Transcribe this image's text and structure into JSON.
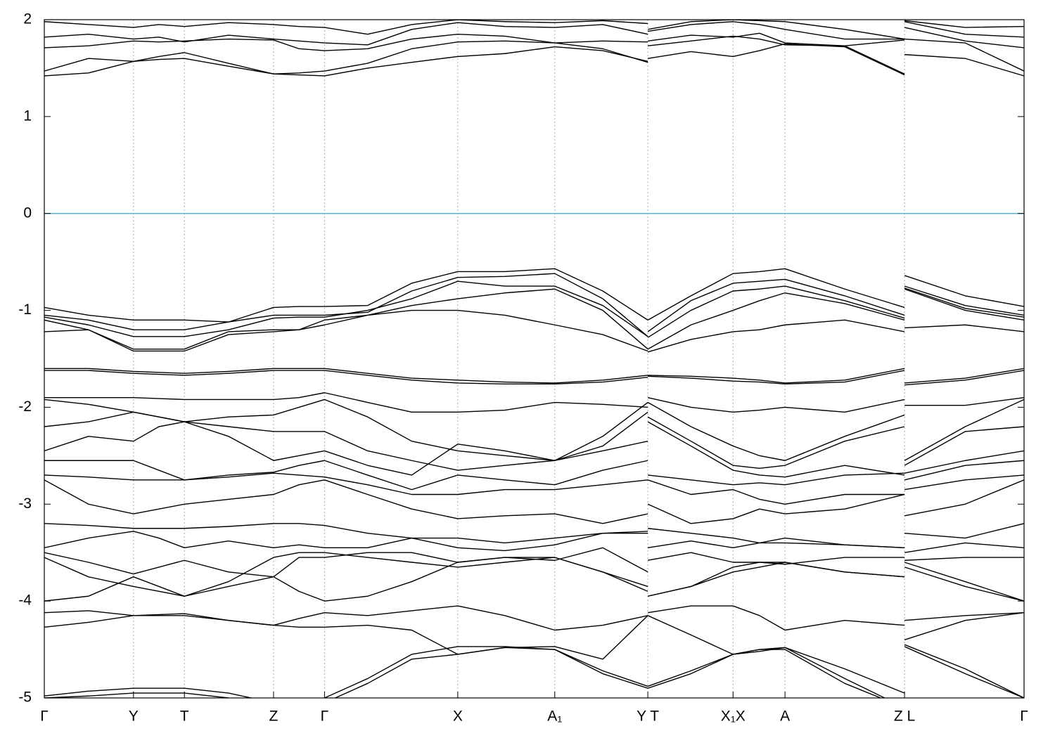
{
  "chart_data": {
    "type": "line",
    "x": [
      0,
      0.045,
      0.091,
      0.117,
      0.143,
      0.188,
      0.234,
      0.26,
      0.286,
      0.33,
      0.375,
      0.422,
      0.47,
      0.521,
      0.57,
      0.616,
      0.616,
      0.616,
      0.66,
      0.703,
      0.73,
      0.756,
      0.817,
      0.878,
      0.878,
      0.878,
      0.94,
      1
    ],
    "xlim": [
      0,
      1
    ],
    "xticks": [
      {
        "value": 0,
        "label": "Γ"
      },
      {
        "value": 0.091,
        "label": "Y"
      },
      {
        "value": 0.143,
        "label": "T"
      },
      {
        "value": 0.234,
        "label": "Z"
      },
      {
        "value": 0.286,
        "label": "Γ"
      },
      {
        "value": 0.422,
        "label": "X"
      },
      {
        "value": 0.521,
        "label": "A₁"
      },
      {
        "value": 0.616,
        "label": "Y T"
      },
      {
        "value": 0.703,
        "label": "X₁X"
      },
      {
        "value": 0.756,
        "label": "A"
      },
      {
        "value": 0.878,
        "label": "Z L"
      },
      {
        "value": 1,
        "label": "Γ"
      }
    ],
    "ylim": [
      -5,
      2
    ],
    "yticks": [
      2,
      1,
      0,
      -1,
      -2,
      -3,
      -4,
      -5
    ],
    "grid": true,
    "reference_line": {
      "value": 0,
      "color": "#5bb4cc"
    },
    "series": [
      {
        "color": "#000000",
        "values": [
          1.42,
          1.45,
          1.57,
          1.59,
          1.6,
          1.52,
          1.44,
          1.43,
          1.42,
          1.5,
          1.56,
          1.62,
          1.65,
          1.72,
          1.68,
          1.57,
          null,
          1.6,
          1.67,
          1.62,
          1.68,
          1.75,
          1.72,
          1.43,
          null,
          1.64,
          1.6,
          1.42
        ]
      },
      {
        "color": "#000000",
        "values": [
          1.47,
          1.6,
          1.57,
          1.62,
          1.66,
          1.55,
          1.44,
          1.45,
          1.47,
          1.55,
          1.7,
          1.77,
          1.78,
          1.76,
          1.7,
          1.56,
          null,
          1.73,
          1.78,
          1.83,
          1.8,
          1.74,
          1.73,
          1.44,
          null,
          1.8,
          1.76,
          1.47
        ]
      },
      {
        "color": "#000000",
        "values": [
          1.71,
          1.73,
          1.78,
          1.77,
          1.78,
          1.8,
          1.79,
          1.7,
          1.68,
          1.7,
          1.8,
          1.85,
          1.83,
          1.76,
          1.78,
          1.77,
          null,
          1.78,
          1.84,
          1.82,
          1.86,
          1.76,
          1.73,
          1.79,
          null,
          1.92,
          1.78,
          1.71
        ]
      },
      {
        "color": "#000000",
        "values": [
          1.82,
          1.85,
          1.8,
          1.82,
          1.77,
          1.84,
          1.8,
          1.78,
          1.76,
          1.74,
          1.9,
          1.97,
          1.93,
          1.92,
          1.95,
          1.85,
          null,
          1.88,
          1.95,
          1.98,
          1.95,
          1.9,
          1.8,
          1.8,
          null,
          1.98,
          1.85,
          1.82
        ]
      },
      {
        "color": "#000000",
        "values": [
          1.98,
          1.95,
          1.92,
          1.95,
          1.93,
          1.97,
          1.95,
          1.93,
          1.92,
          1.85,
          1.95,
          2.0,
          1.98,
          1.97,
          1.99,
          1.96,
          null,
          1.9,
          1.98,
          2.0,
          1.99,
          1.98,
          1.9,
          1.8,
          null,
          1.99,
          1.92,
          1.93
        ]
      },
      {
        "color": "#000000",
        "values": [
          -0.97,
          -1.05,
          -1.1,
          -1.1,
          -1.1,
          -1.12,
          -0.97,
          -0.96,
          -0.96,
          -0.95,
          -0.72,
          -0.6,
          -0.6,
          -0.57,
          -0.8,
          -1.1,
          null,
          -1.1,
          -0.85,
          -0.62,
          -0.6,
          -0.57,
          -0.78,
          -0.97,
          null,
          -0.64,
          -0.85,
          -0.96
        ]
      },
      {
        "color": "#000000",
        "values": [
          -1.05,
          -1.1,
          -1.2,
          -1.2,
          -1.2,
          -1.12,
          -1.05,
          -1.05,
          -1.05,
          -1.02,
          -0.8,
          -0.66,
          -0.65,
          -0.62,
          -0.88,
          -1.27,
          null,
          -1.22,
          -0.9,
          -0.72,
          -0.7,
          -0.68,
          -0.85,
          -1.05,
          null,
          -0.75,
          -0.95,
          -1.05
        ]
      },
      {
        "color": "#000000",
        "values": [
          -1.07,
          -1.15,
          -1.27,
          -1.27,
          -1.27,
          -1.2,
          -1.08,
          -1.07,
          -1.07,
          -1.0,
          -0.88,
          -0.7,
          -0.75,
          -0.75,
          -0.95,
          -1.27,
          null,
          -1.28,
          -1.0,
          -0.8,
          -0.78,
          -0.75,
          -0.9,
          -1.08,
          null,
          -0.77,
          -0.98,
          -1.07
        ]
      },
      {
        "color": "#000000",
        "values": [
          -1.1,
          -1.2,
          -1.4,
          -1.4,
          -1.4,
          -1.22,
          -1.2,
          -1.2,
          -1.1,
          -1.05,
          -0.95,
          -0.88,
          -0.82,
          -0.78,
          -1.0,
          -1.4,
          null,
          -1.4,
          -1.15,
          -1.0,
          -0.9,
          -0.82,
          -0.93,
          -1.1,
          null,
          -0.78,
          -1.0,
          -1.1
        ]
      },
      {
        "color": "#000000",
        "values": [
          -1.22,
          -1.2,
          -1.42,
          -1.42,
          -1.42,
          -1.25,
          -1.22,
          -1.2,
          -1.15,
          -1.05,
          -1.0,
          -1.0,
          -1.05,
          -1.15,
          -1.25,
          -1.42,
          null,
          -1.43,
          -1.3,
          -1.22,
          -1.2,
          -1.15,
          -1.1,
          -1.22,
          null,
          -1.18,
          -1.15,
          -1.22
        ]
      },
      {
        "color": "#000000",
        "values": [
          -1.6,
          -1.6,
          -1.63,
          -1.64,
          -1.65,
          -1.63,
          -1.6,
          -1.6,
          -1.6,
          -1.65,
          -1.7,
          -1.72,
          -1.74,
          -1.75,
          -1.72,
          -1.67,
          null,
          -1.67,
          -1.68,
          -1.7,
          -1.72,
          -1.75,
          -1.72,
          -1.6,
          null,
          -1.75,
          -1.7,
          -1.6
        ]
      },
      {
        "color": "#000000",
        "values": [
          -1.62,
          -1.62,
          -1.65,
          -1.66,
          -1.67,
          -1.65,
          -1.62,
          -1.62,
          -1.62,
          -1.67,
          -1.72,
          -1.75,
          -1.76,
          -1.76,
          -1.74,
          -1.69,
          null,
          -1.68,
          -1.7,
          -1.73,
          -1.74,
          -1.76,
          -1.74,
          -1.62,
          null,
          -1.77,
          -1.72,
          -1.62
        ]
      },
      {
        "color": "#000000",
        "values": [
          -1.9,
          -1.9,
          -1.9,
          -1.91,
          -1.92,
          -1.92,
          -1.92,
          -1.9,
          -1.85,
          -1.95,
          -2.05,
          -2.05,
          -2.03,
          -1.95,
          -1.97,
          -2.0,
          null,
          -1.9,
          -2.0,
          -2.05,
          -2.03,
          -2.0,
          -2.05,
          -1.92,
          null,
          -1.98,
          -1.98,
          -1.9
        ]
      },
      {
        "color": "#000000",
        "values": [
          -1.92,
          -1.97,
          -2.05,
          -2.1,
          -2.15,
          -2.1,
          -2.08,
          -2.0,
          -1.92,
          -2.1,
          -2.35,
          -2.45,
          -2.5,
          -2.55,
          -2.3,
          -1.95,
          null,
          -1.95,
          -2.2,
          -2.4,
          -2.5,
          -2.55,
          -2.3,
          -2.08,
          null,
          -2.55,
          -2.2,
          -1.92
        ]
      },
      {
        "color": "#000000",
        "values": [
          -2.2,
          -2.15,
          -2.05,
          -2.1,
          -2.15,
          -2.2,
          -2.25,
          -2.25,
          -2.25,
          -2.45,
          -2.55,
          -2.65,
          -2.6,
          -2.55,
          -2.4,
          -2.05,
          null,
          -2.1,
          -2.35,
          -2.6,
          -2.63,
          -2.6,
          -2.35,
          -2.2,
          null,
          -2.6,
          -2.25,
          -2.2
        ]
      },
      {
        "color": "#000000",
        "values": [
          -2.45,
          -2.3,
          -2.35,
          -2.2,
          -2.15,
          -2.3,
          -2.55,
          -2.5,
          -2.45,
          -2.6,
          -2.7,
          -2.38,
          -2.45,
          -2.55,
          -2.45,
          -2.35,
          null,
          -2.15,
          -2.4,
          -2.65,
          -2.7,
          -2.72,
          -2.6,
          -2.7,
          null,
          -2.68,
          -2.55,
          -2.45
        ]
      },
      {
        "color": "#000000",
        "values": [
          -2.55,
          -2.55,
          -2.55,
          -2.65,
          -2.75,
          -2.7,
          -2.67,
          -2.6,
          -2.55,
          -2.7,
          -2.85,
          -2.7,
          -2.75,
          -2.8,
          -2.65,
          -2.55,
          null,
          -2.7,
          -2.75,
          -2.8,
          -2.78,
          -2.8,
          -2.7,
          -2.68,
          null,
          -2.75,
          -2.6,
          -2.55
        ]
      },
      {
        "color": "#000000",
        "values": [
          -2.7,
          -2.72,
          -2.75,
          -2.75,
          -2.75,
          -2.72,
          -2.68,
          -2.7,
          -2.72,
          -2.8,
          -2.9,
          -2.9,
          -2.85,
          -2.85,
          -2.8,
          -2.75,
          null,
          -2.75,
          -2.9,
          -2.85,
          -2.95,
          -3.0,
          -2.9,
          -2.9,
          null,
          -2.85,
          -2.75,
          -2.7
        ]
      },
      {
        "color": "#000000",
        "values": [
          -2.75,
          -3.0,
          -3.1,
          -3.05,
          -3.0,
          -2.95,
          -2.9,
          -2.8,
          -2.75,
          -2.9,
          -3.05,
          -3.15,
          -3.12,
          -3.1,
          -3.2,
          -3.1,
          null,
          -3.0,
          -3.2,
          -3.15,
          -3.05,
          -3.1,
          -3.05,
          -2.9,
          null,
          -3.12,
          -3.0,
          -2.75
        ]
      },
      {
        "color": "#000000",
        "values": [
          -3.2,
          -3.22,
          -3.25,
          -3.25,
          -3.25,
          -3.23,
          -3.2,
          -3.2,
          -3.22,
          -3.3,
          -3.35,
          -3.35,
          -3.4,
          -3.35,
          -3.3,
          -3.28,
          null,
          -3.25,
          -3.3,
          -3.35,
          -3.4,
          -3.4,
          -3.42,
          -3.45,
          null,
          -3.3,
          -3.35,
          -3.2
        ]
      },
      {
        "color": "#000000",
        "values": [
          -3.45,
          -3.35,
          -3.28,
          -3.35,
          -3.45,
          -3.38,
          -3.45,
          -3.42,
          -3.45,
          -3.45,
          -3.35,
          -3.45,
          -3.48,
          -3.42,
          -3.3,
          -3.3,
          null,
          -3.45,
          -3.38,
          -3.45,
          -3.4,
          -3.35,
          -3.42,
          -3.45,
          null,
          -3.5,
          -3.4,
          -3.45
        ]
      },
      {
        "color": "#000000",
        "values": [
          -3.5,
          -3.6,
          -3.72,
          -3.65,
          -3.58,
          -3.7,
          -3.75,
          -3.55,
          -3.55,
          -3.5,
          -3.5,
          -3.6,
          -3.55,
          -3.58,
          -3.45,
          -3.7,
          null,
          -3.58,
          -3.5,
          -3.6,
          -3.6,
          -3.62,
          -3.55,
          -3.55,
          null,
          -3.58,
          -3.55,
          -3.55
        ]
      },
      {
        "color": "#000000",
        "values": [
          -3.55,
          -3.75,
          -3.85,
          -3.9,
          -3.95,
          -3.8,
          -3.55,
          -3.5,
          -3.5,
          -3.55,
          -3.6,
          -3.65,
          -3.6,
          -3.55,
          -3.7,
          -3.85,
          null,
          -3.95,
          -3.85,
          -3.7,
          -3.65,
          -3.6,
          -3.7,
          -3.75,
          null,
          -3.6,
          -3.8,
          -4.0
        ]
      },
      {
        "color": "#000000",
        "values": [
          -4.0,
          -3.95,
          -3.75,
          -3.85,
          -3.95,
          -3.85,
          -3.75,
          -3.9,
          -4.0,
          -3.95,
          -3.8,
          -3.6,
          -3.55,
          -3.55,
          -3.7,
          -3.9,
          null,
          -3.95,
          -3.85,
          -3.65,
          -3.6,
          -3.6,
          -3.7,
          -3.75,
          null,
          -3.65,
          -3.85,
          -4.0
        ]
      },
      {
        "color": "#000000",
        "values": [
          -4.12,
          -4.1,
          -4.15,
          -4.14,
          -4.13,
          -4.2,
          -4.25,
          -4.18,
          -4.12,
          -4.15,
          -4.1,
          -4.05,
          -4.15,
          -4.3,
          -4.25,
          -4.15,
          null,
          -4.12,
          -4.05,
          -4.05,
          -4.15,
          -4.3,
          -4.2,
          -4.25,
          null,
          -4.2,
          -4.15,
          -4.12
        ]
      },
      {
        "color": "#000000",
        "values": [
          -4.27,
          -4.22,
          -4.15,
          -4.15,
          -4.15,
          -4.2,
          -4.25,
          -4.27,
          -4.27,
          -4.25,
          -4.3,
          -4.55,
          -4.48,
          -4.47,
          -4.6,
          -4.15,
          null,
          -4.15,
          -4.35,
          -4.55,
          -4.52,
          -4.48,
          -4.7,
          -4.95,
          null,
          -4.4,
          -4.2,
          -4.12
        ]
      },
      {
        "color": "#000000",
        "values": [
          -4.98,
          -4.93,
          -4.9,
          -4.9,
          -4.9,
          -4.95,
          -5.05,
          -5.1,
          -5.0,
          -4.8,
          -4.55,
          -4.47,
          -4.47,
          -4.5,
          -4.75,
          -4.9,
          null,
          -4.9,
          -4.75,
          -4.55,
          -4.5,
          -4.48,
          -4.8,
          -5.1,
          null,
          -4.45,
          -4.7,
          -5.0
        ]
      },
      {
        "color": "#000000",
        "values": [
          -5.0,
          -4.98,
          -4.95,
          -4.95,
          -4.95,
          -5.0,
          -5.1,
          -5.1,
          -5.05,
          -4.85,
          -4.6,
          -4.55,
          -4.48,
          -4.5,
          -4.72,
          -4.88,
          null,
          -4.88,
          -4.72,
          -4.55,
          -4.5,
          -4.5,
          -4.85,
          -5.1,
          null,
          -4.47,
          -4.75,
          -5.0
        ]
      }
    ]
  }
}
